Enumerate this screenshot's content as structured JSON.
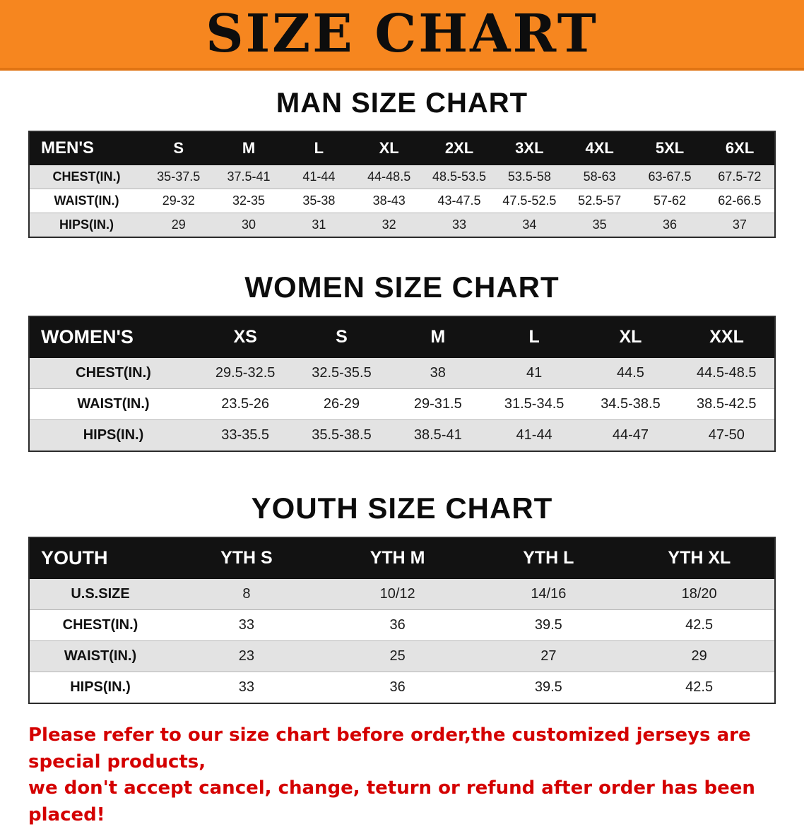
{
  "banner": {
    "title": "SIZE CHART",
    "background_color": "#f6861f"
  },
  "sections": [
    {
      "heading": "MAN SIZE CHART",
      "table": {
        "corner": "MEN'S",
        "columns": [
          "S",
          "M",
          "L",
          "XL",
          "2XL",
          "3XL",
          "4XL",
          "5XL",
          "6XL"
        ],
        "rows": [
          {
            "label": "CHEST(IN.)",
            "values": [
              "35-37.5",
              "37.5-41",
              "41-44",
              "44-48.5",
              "48.5-53.5",
              "53.5-58",
              "58-63",
              "63-67.5",
              "67.5-72"
            ]
          },
          {
            "label": "WAIST(IN.)",
            "values": [
              "29-32",
              "32-35",
              "35-38",
              "38-43",
              "43-47.5",
              "47.5-52.5",
              "52.5-57",
              "57-62",
              "62-66.5"
            ]
          },
          {
            "label": "HIPS(IN.)",
            "values": [
              "29",
              "30",
              "31",
              "32",
              "33",
              "34",
              "35",
              "36",
              "37"
            ]
          }
        ]
      }
    },
    {
      "heading": "WOMEN SIZE CHART",
      "table": {
        "corner": "WOMEN'S",
        "columns": [
          "XS",
          "S",
          "M",
          "L",
          "XL",
          "XXL"
        ],
        "rows": [
          {
            "label": "CHEST(IN.)",
            "values": [
              "29.5-32.5",
              "32.5-35.5",
              "38",
              "41",
              "44.5",
              "44.5-48.5"
            ]
          },
          {
            "label": "WAIST(IN.)",
            "values": [
              "23.5-26",
              "26-29",
              "29-31.5",
              "31.5-34.5",
              "34.5-38.5",
              "38.5-42.5"
            ]
          },
          {
            "label": "HIPS(IN.)",
            "values": [
              "33-35.5",
              "35.5-38.5",
              "38.5-41",
              "41-44",
              "44-47",
              "47-50"
            ]
          }
        ]
      }
    },
    {
      "heading": "YOUTH SIZE CHART",
      "table": {
        "corner": "YOUTH",
        "columns": [
          "YTH S",
          "YTH M",
          "YTH L",
          "YTH XL"
        ],
        "rows": [
          {
            "label": "U.S.SIZE",
            "values": [
              "8",
              "10/12",
              "14/16",
              "18/20"
            ]
          },
          {
            "label": "CHEST(IN.)",
            "values": [
              "33",
              "36",
              "39.5",
              "42.5"
            ]
          },
          {
            "label": "WAIST(IN.)",
            "values": [
              "23",
              "25",
              "27",
              "29"
            ]
          },
          {
            "label": "HIPS(IN.)",
            "values": [
              "33",
              "36",
              "39.5",
              "42.5"
            ]
          }
        ]
      }
    }
  ],
  "disclaimer": {
    "color": "#d40000",
    "lines": [
      "Please refer to our size chart before order,the customized jerseys are special products,",
      "we don't accept cancel, change, teturn or refund after order has been placed!"
    ]
  }
}
